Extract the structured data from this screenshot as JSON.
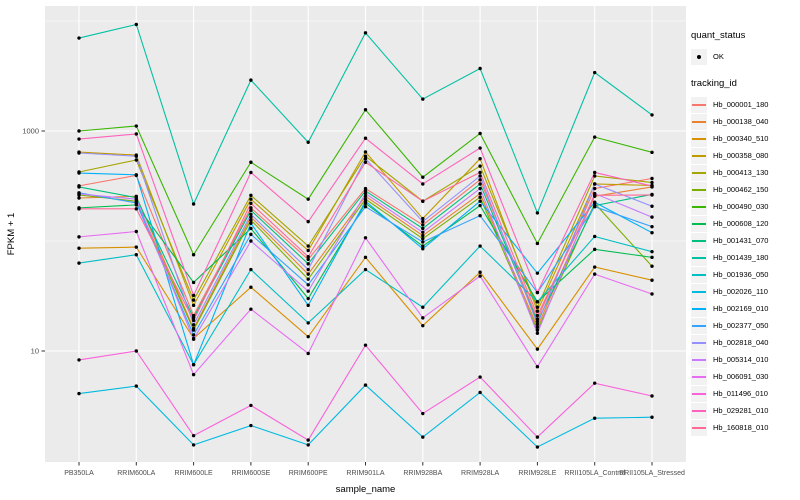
{
  "figure": {
    "background": "#FFFFFF",
    "panel_background": "#EBEBEB",
    "grid_color": "#FFFFFF",
    "tick_label_color": "#4D4D4D",
    "tick_mark_color": "#333333",
    "axis_title_color": "#000000",
    "point_color": "#000000"
  },
  "axes": {
    "x_title": "sample_name",
    "y_title": "FPKM + 1",
    "y_tick_labels": [
      "1000",
      "10"
    ]
  },
  "legend": {
    "quant_status_title": "quant_status",
    "quant_status_items": [
      {
        "label": "OK",
        "marker": "point-icon",
        "color": "#000000"
      }
    ],
    "tracking_title": "tracking_id"
  },
  "chart_data": {
    "type": "line",
    "title": "",
    "xlabel": "sample_name",
    "ylabel": "FPKM + 1",
    "y_scale": "log10",
    "y_ticks": [
      10,
      1000
    ],
    "y_minor_ticks": [
      100,
      10000
    ],
    "ylim": [
      1,
      13000
    ],
    "grid": true,
    "legend_position": "right",
    "point_marker": "black-dot",
    "categories": [
      "PB350LA",
      "RRIM600LA",
      "RRIM600LE",
      "RRIM600SE",
      "RRIM600PE",
      "RRIM901LA",
      "RRIM928BA",
      "RRIM928LA",
      "RRIM928LE",
      "RRII105LA_Control",
      "RRII105LA_Stressed"
    ],
    "series": [
      {
        "name": "Hb_000001_180",
        "color": "#F8766D",
        "values": [
          317,
          395,
          21,
          200,
          68,
          300,
          140,
          360,
          19.5,
          300,
          370
        ]
      },
      {
        "name": "Hb_000138_040",
        "color": "#EA8331",
        "values": [
          246,
          255,
          16,
          165,
          50,
          255,
          112,
          270,
          16.5,
          255,
          310
        ]
      },
      {
        "name": "Hb_000340_510",
        "color": "#D89000",
        "values": [
          86,
          88,
          13,
          38,
          13.5,
          71,
          17,
          52,
          10.4,
          58,
          44
        ]
      },
      {
        "name": "Hb_000358_080",
        "color": "#C09B00",
        "values": [
          644,
          604,
          26,
          240,
          82,
          645,
          160,
          560,
          23,
          330,
          320
        ]
      },
      {
        "name": "Hb_000413_130",
        "color": "#A3A500",
        "values": [
          424,
          545,
          29,
          260,
          90,
          590,
          230,
          480,
          25,
          390,
          340
        ]
      },
      {
        "name": "Hb_000462_150",
        "color": "#7CAE00",
        "values": [
          262,
          230,
          15.5,
          155,
          45,
          240,
          105,
          250,
          15.5,
          220,
          59
        ]
      },
      {
        "name": "Hb_000490_030",
        "color": "#39B600",
        "values": [
          1000,
          1110,
          75,
          520,
          240,
          1560,
          380,
          950,
          95,
          880,
          640
        ]
      },
      {
        "name": "Hb_000608_120",
        "color": "#00BB4E",
        "values": [
          200,
          213,
          42,
          130,
          30,
          220,
          90,
          210,
          28,
          84,
          71
        ]
      },
      {
        "name": "Hb_001431_070",
        "color": "#00BF7D",
        "values": [
          310,
          248,
          20,
          190,
          62,
          285,
          130,
          330,
          18.5,
          210,
          265
        ]
      },
      {
        "name": "Hb_001439_180",
        "color": "#00C1A3",
        "values": [
          7000,
          9300,
          217,
          2900,
          790,
          7800,
          1950,
          3700,
          180,
          3400,
          1400
        ]
      },
      {
        "name": "Hb_001936_050",
        "color": "#00BFC4",
        "values": [
          63,
          75,
          7.5,
          55,
          18,
          55,
          25,
          90,
          28,
          110,
          80
        ]
      },
      {
        "name": "Hb_002026_110",
        "color": "#00BAE0",
        "values": [
          4.1,
          4.8,
          1.4,
          2.1,
          1.4,
          4.9,
          1.65,
          4.2,
          1.34,
          2.45,
          2.5
        ]
      },
      {
        "name": "Hb_002169_010",
        "color": "#00B0F6",
        "values": [
          415,
          400,
          7.5,
          145,
          26,
          230,
          85,
          230,
          51,
          225,
          119
        ]
      },
      {
        "name": "Hb_002377_050",
        "color": "#35A2FF",
        "values": [
          274,
          222,
          14,
          115,
          40,
          205,
          98,
          170,
          34,
          205,
          135
        ]
      },
      {
        "name": "Hb_002818_040",
        "color": "#9590FF",
        "values": [
          631,
          590,
          17.3,
          175,
          55,
          560,
          150,
          390,
          17.5,
          330,
          207
        ]
      },
      {
        "name": "Hb_005314_010",
        "color": "#C77CFF",
        "values": [
          268,
          240,
          12.8,
          100,
          35,
          270,
          120,
          300,
          14.5,
          270,
          165
        ]
      },
      {
        "name": "Hb_006091_030",
        "color": "#E76BF3",
        "values": [
          109,
          122,
          6.1,
          24,
          9.5,
          107,
          20,
          48,
          7.2,
          50,
          33
        ]
      },
      {
        "name": "Hb_011496_010",
        "color": "#FA62DB",
        "values": [
          8.3,
          10,
          1.7,
          3.2,
          1.55,
          11.3,
          2.7,
          5.8,
          1.65,
          5.1,
          3.9
        ]
      },
      {
        "name": "Hb_029281_010",
        "color": "#FF62BC",
        "values": [
          845,
          940,
          32,
          420,
          150,
          860,
          330,
          700,
          34,
          420,
          316
        ]
      },
      {
        "name": "Hb_160818_010",
        "color": "#FF6A98",
        "values": [
          196,
          196,
          19,
          220,
          72,
          520,
          230,
          420,
          21,
          260,
          262
        ]
      }
    ]
  }
}
